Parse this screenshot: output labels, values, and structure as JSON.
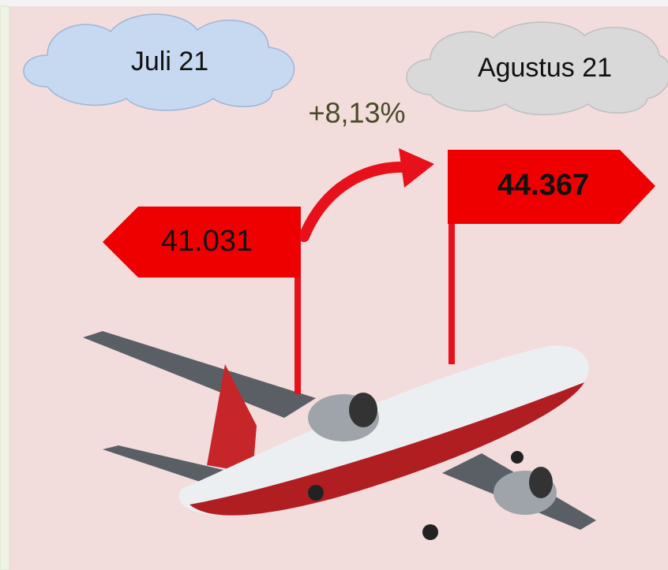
{
  "periods": [
    {
      "month": "Juli 21",
      "value": "41.031"
    },
    {
      "month": "Agustus 21",
      "value": "44.367"
    }
  ],
  "change": "+8,13%"
}
